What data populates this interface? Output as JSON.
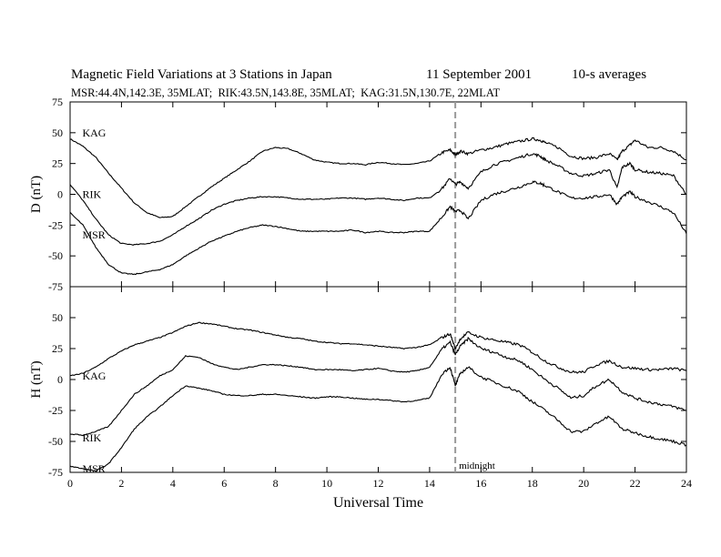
{
  "header": {
    "title": "Magnetic Field Variations at 3 Stations in Japan",
    "date": "11 September 2001",
    "averaging": "10-s averages",
    "subtitle": "MSR:44.4N,142.3E, 35MLAT;  RIK:43.5N,143.8E, 35MLAT;  KAG:31.5N,130.7E, 22MLAT"
  },
  "chart_data": [
    {
      "type": "line",
      "panel": "top",
      "ylabel": "D (nT)",
      "xlabel": "Universal Time",
      "xlim": [
        0,
        24
      ],
      "ylim": [
        -75,
        75
      ],
      "x_ticks": [
        0,
        2,
        4,
        6,
        8,
        10,
        12,
        14,
        16,
        18,
        20,
        22,
        24
      ],
      "y_ticks": [
        -75,
        -50,
        -25,
        0,
        25,
        50,
        75
      ],
      "marker": {
        "x": 15,
        "style": "dashed",
        "color": "#999999"
      },
      "series": [
        {
          "name": "KAG",
          "label_at": [
            0.3,
            50
          ],
          "x": [
            0,
            0.5,
            1,
            1.5,
            2,
            2.5,
            3,
            3.5,
            4,
            4.5,
            5,
            5.5,
            6,
            6.5,
            7,
            7.5,
            8,
            8.5,
            9,
            9.5,
            10,
            10.5,
            11,
            11.5,
            12,
            12.5,
            13,
            13.5,
            14,
            14.5,
            14.8,
            15,
            15.2,
            15.5,
            16,
            16.5,
            17,
            17.5,
            18,
            18.3,
            18.5,
            19,
            19.5,
            20,
            20.5,
            21,
            21.3,
            21.5,
            21.8,
            22,
            22.5,
            23,
            23.5,
            24
          ],
          "y": [
            45,
            39,
            30,
            17,
            5,
            -7,
            -15,
            -19,
            -18,
            -10,
            -2,
            6,
            13,
            20,
            27,
            35,
            38,
            37,
            33,
            28,
            26,
            25,
            25,
            24,
            26,
            25,
            24,
            25,
            27,
            34,
            36,
            32,
            35,
            33,
            36,
            38,
            41,
            43,
            45,
            44,
            42,
            38,
            31,
            29,
            30,
            33,
            28,
            35,
            40,
            44,
            38,
            38,
            35,
            28
          ]
        },
        {
          "name": "RIK",
          "label_at": [
            0.3,
            0
          ],
          "x": [
            0,
            0.5,
            1,
            1.5,
            2,
            2.5,
            3,
            3.5,
            4,
            4.5,
            5,
            5.5,
            6,
            6.5,
            7,
            7.5,
            8,
            8.5,
            9,
            9.5,
            10,
            10.5,
            11,
            11.5,
            12,
            12.5,
            13,
            13.5,
            14,
            14.5,
            14.8,
            15,
            15.2,
            15.5,
            16,
            16.5,
            17,
            17.5,
            18,
            18.3,
            18.5,
            19,
            19.5,
            20,
            20.5,
            21,
            21.3,
            21.5,
            21.8,
            22,
            22.5,
            23,
            23.5,
            24
          ],
          "y": [
            8,
            -5,
            -20,
            -33,
            -40,
            -41,
            -40,
            -38,
            -33,
            -26,
            -20,
            -13,
            -8,
            -5,
            -3,
            -2,
            -2,
            -3,
            -4,
            -4,
            -4,
            -3,
            -3,
            -4,
            -3,
            -4,
            -5,
            -3,
            -3,
            5,
            13,
            8,
            10,
            5,
            18,
            24,
            27,
            30,
            33,
            31,
            28,
            23,
            17,
            15,
            17,
            20,
            5,
            22,
            25,
            20,
            18,
            17,
            15,
            0
          ]
        },
        {
          "name": "MSR",
          "label_at": [
            0.3,
            -33
          ],
          "x": [
            0,
            0.5,
            1,
            1.5,
            2,
            2.5,
            3,
            3.5,
            4,
            4.5,
            5,
            5.5,
            6,
            6.5,
            7,
            7.5,
            8,
            8.5,
            9,
            9.5,
            10,
            10.5,
            11,
            11.5,
            12,
            12.5,
            13,
            13.5,
            14,
            14.5,
            14.8,
            15,
            15.2,
            15.5,
            16,
            16.5,
            17,
            17.5,
            18,
            18.3,
            18.5,
            19,
            19.5,
            20,
            20.5,
            21,
            21.3,
            21.5,
            21.8,
            22,
            22.5,
            23,
            23.5,
            24
          ],
          "y": [
            -15,
            -25,
            -43,
            -57,
            -64,
            -65,
            -63,
            -61,
            -57,
            -50,
            -44,
            -38,
            -34,
            -30,
            -27,
            -25,
            -26,
            -28,
            -30,
            -30,
            -30,
            -30,
            -29,
            -31,
            -30,
            -31,
            -31,
            -30,
            -30,
            -18,
            -10,
            -14,
            -13,
            -20,
            -5,
            0,
            3,
            6,
            10,
            9,
            7,
            2,
            -3,
            -3,
            -2,
            0,
            -8,
            -2,
            2,
            -2,
            -6,
            -10,
            -15,
            -32
          ]
        }
      ]
    },
    {
      "type": "line",
      "panel": "bottom",
      "ylabel": "H (nT)",
      "xlabel": "Universal Time",
      "xlim": [
        0,
        24
      ],
      "ylim": [
        -75,
        75
      ],
      "x_ticks": [
        0,
        2,
        4,
        6,
        8,
        10,
        12,
        14,
        16,
        18,
        20,
        22,
        24
      ],
      "x_tick_labels": [
        "0",
        "2",
        "4",
        "6",
        "8",
        "10",
        "12",
        "14",
        "16",
        "18",
        "20",
        "22",
        "24"
      ],
      "y_ticks": [
        -75,
        -50,
        -25,
        0,
        25,
        50,
        75
      ],
      "y_tick_labels": [
        "-75",
        "-50",
        "-25",
        "0",
        "25",
        "50",
        ""
      ],
      "marker": {
        "x": 15,
        "style": "dashed",
        "color": "#999999",
        "label": "midnight"
      },
      "series": [
        {
          "name": "KAG",
          "label_at": [
            0.3,
            3
          ],
          "x": [
            0,
            0.5,
            1,
            1.5,
            2,
            2.5,
            3,
            3.5,
            4,
            4.5,
            5,
            5.5,
            6,
            6.5,
            7,
            7.5,
            8,
            8.5,
            9,
            9.5,
            10,
            10.5,
            11,
            11.5,
            12,
            12.5,
            13,
            13.5,
            14,
            14.5,
            14.8,
            15,
            15.2,
            15.5,
            16,
            16.5,
            17,
            17.5,
            18,
            18.5,
            19,
            19.5,
            20,
            20.5,
            21,
            21.5,
            22,
            22.5,
            23,
            23.5,
            24
          ],
          "y": [
            3,
            5,
            10,
            17,
            23,
            28,
            31,
            34,
            38,
            43,
            46,
            45,
            43,
            41,
            40,
            38,
            36,
            34,
            33,
            31,
            30,
            29,
            29,
            28,
            27,
            26,
            25,
            26,
            28,
            34,
            37,
            25,
            33,
            38,
            34,
            32,
            30,
            28,
            22,
            15,
            10,
            6,
            6,
            12,
            15,
            10,
            9,
            8,
            8,
            9,
            7
          ]
        },
        {
          "name": "RIK",
          "label_at": [
            0.3,
            -47
          ],
          "x": [
            0,
            0.5,
            1,
            1.5,
            2,
            2.5,
            3,
            3.5,
            4,
            4.5,
            5,
            5.5,
            6,
            6.5,
            7,
            7.5,
            8,
            8.5,
            9,
            9.5,
            10,
            10.5,
            11,
            11.5,
            12,
            12.5,
            13,
            13.5,
            14,
            14.5,
            14.8,
            15,
            15.2,
            15.5,
            16,
            16.5,
            17,
            17.5,
            18,
            18.5,
            19,
            19.5,
            20,
            20.5,
            21,
            21.5,
            22,
            22.5,
            23,
            23.5,
            24
          ],
          "y": [
            -44,
            -45,
            -42,
            -38,
            -25,
            -12,
            -5,
            3,
            8,
            19,
            18,
            13,
            10,
            8,
            10,
            12,
            12,
            11,
            10,
            8,
            8,
            8,
            7,
            8,
            9,
            7,
            6,
            7,
            10,
            25,
            30,
            20,
            27,
            33,
            25,
            22,
            18,
            15,
            8,
            0,
            -7,
            -15,
            -13,
            -5,
            0,
            -10,
            -15,
            -18,
            -20,
            -22,
            -25
          ]
        },
        {
          "name": "MSR",
          "label_at": [
            0.3,
            -72
          ],
          "x": [
            0,
            0.5,
            1,
            1.5,
            2,
            2.5,
            3,
            3.5,
            4,
            4.5,
            5,
            5.5,
            6,
            6.5,
            7,
            7.5,
            8,
            8.5,
            9,
            9.5,
            10,
            10.5,
            11,
            11.5,
            12,
            12.5,
            13,
            13.5,
            14,
            14.5,
            14.8,
            15,
            15.2,
            15.5,
            16,
            16.5,
            17,
            17.5,
            18,
            18.5,
            19,
            19.5,
            20,
            20.5,
            21,
            21.5,
            22,
            22.5,
            23,
            23.5,
            24
          ],
          "y": [
            -70,
            -72,
            -74,
            -68,
            -55,
            -40,
            -30,
            -22,
            -13,
            -5,
            -7,
            -9,
            -12,
            -13,
            -13,
            -12,
            -12,
            -13,
            -14,
            -15,
            -14,
            -14,
            -15,
            -16,
            -16,
            -17,
            -18,
            -17,
            -15,
            5,
            10,
            -5,
            5,
            10,
            2,
            -2,
            -6,
            -10,
            -18,
            -25,
            -33,
            -42,
            -42,
            -35,
            -30,
            -40,
            -43,
            -46,
            -48,
            -50,
            -53
          ]
        }
      ]
    }
  ]
}
